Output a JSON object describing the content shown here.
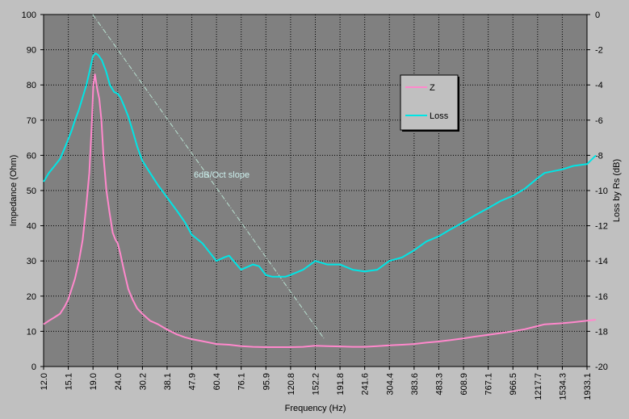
{
  "chart_data": {
    "type": "line",
    "xlabel": "Frequency (Hz)",
    "ylabel_left": "Impedance (Ohm)",
    "ylabel_right": "Loss by Rs (dB)",
    "x_scale": "log",
    "x_ticks": [
      "12.0",
      "15.1",
      "19.0",
      "24.0",
      "30.2",
      "38.1",
      "47.9",
      "60.4",
      "76.1",
      "95.9",
      "120.8",
      "152.2",
      "191.8",
      "241.6",
      "304.4",
      "383.6",
      "483.3",
      "608.9",
      "767.1",
      "966.5",
      "1217.7",
      "1534.3",
      "1933.1"
    ],
    "y_left_ticks": [
      "0",
      "10",
      "20",
      "30",
      "40",
      "50",
      "60",
      "70",
      "80",
      "90",
      "100"
    ],
    "y_left_lim": [
      0,
      100
    ],
    "y_right_ticks": [
      "0",
      "-2",
      "-4",
      "-6",
      "-8",
      "-10",
      "-12",
      "-14",
      "-16",
      "-18",
      "-20"
    ],
    "y_right_lim": [
      -20,
      0
    ],
    "grid": true,
    "legend_position": "top-right",
    "annotation": "6dB/Oct slope",
    "slope_line": {
      "x": [
        19.0,
        165.0
      ],
      "y": [
        100,
        8
      ]
    },
    "series": [
      {
        "name": "Z",
        "axis": "left",
        "color": "#ff88cc",
        "x": [
          12.0,
          12.6,
          13.3,
          14.0,
          14.6,
          15.1,
          15.6,
          16.1,
          16.7,
          17.3,
          17.9,
          18.4,
          18.8,
          19.1,
          19.4,
          19.8,
          20.2,
          20.6,
          21.0,
          21.6,
          22.2,
          22.9,
          23.5,
          24.0,
          24.6,
          25.5,
          26.5,
          27.6,
          28.8,
          30.2,
          32.5,
          35.0,
          38.1,
          41.5,
          45.0,
          47.9,
          53.0,
          60.4,
          68.0,
          76.1,
          85.0,
          95.9,
          108.0,
          120.8,
          136.0,
          152.2,
          170.0,
          191.8,
          216.0,
          241.6,
          272.0,
          304.4,
          343.0,
          383.6,
          430.0,
          483.3,
          540.0,
          608.9,
          680.0,
          767.1,
          860.0,
          966.5,
          1080.0,
          1217.7,
          1300.0,
          1534.3,
          1700.0,
          1933.1,
          2100.0
        ],
        "y": [
          12,
          13,
          14,
          15,
          17,
          19,
          22,
          25,
          30,
          36,
          46,
          55,
          68,
          80,
          83,
          79,
          76,
          70,
          60,
          50,
          44,
          38,
          36,
          35,
          32,
          27,
          22,
          19,
          16.5,
          15,
          13,
          12,
          10.5,
          9.2,
          8.3,
          7.8,
          7.2,
          6.4,
          6.2,
          5.8,
          5.6,
          5.5,
          5.5,
          5.5,
          5.6,
          5.9,
          5.8,
          5.7,
          5.6,
          5.6,
          5.8,
          6.0,
          6.2,
          6.4,
          6.8,
          7.1,
          7.5,
          8.0,
          8.5,
          9.0,
          9.5,
          10.0,
          10.6,
          11.5,
          12.0,
          12.3,
          12.6,
          13.0,
          13.3
        ]
      },
      {
        "name": "Loss",
        "axis": "right",
        "color": "#00e5e5",
        "x": [
          12.0,
          12.6,
          13.3,
          14.0,
          14.6,
          15.1,
          15.6,
          16.1,
          16.7,
          17.3,
          17.9,
          18.4,
          19.0,
          19.5,
          20.0,
          20.7,
          21.5,
          22.3,
          23.2,
          24.0,
          24.6,
          25.5,
          26.5,
          27.6,
          28.8,
          30.2,
          32.5,
          35.0,
          38.1,
          41.5,
          45.0,
          47.9,
          53.0,
          60.4,
          65.0,
          68.0,
          76.1,
          85.0,
          90.0,
          95.9,
          102.0,
          108.0,
          115.0,
          120.8,
          136.0,
          152.2,
          170.0,
          191.8,
          216.0,
          241.6,
          272.0,
          304.4,
          343.0,
          383.6,
          430.0,
          483.3,
          540.0,
          608.9,
          680.0,
          767.1,
          860.0,
          966.5,
          1080.0,
          1217.7,
          1300.0,
          1534.3,
          1700.0,
          1933.1,
          2100.0
        ],
        "y": [
          -9.5,
          -9.0,
          -8.6,
          -8.2,
          -7.6,
          -7.1,
          -6.6,
          -6.0,
          -5.4,
          -4.7,
          -4.0,
          -3.3,
          -2.4,
          -2.2,
          -2.3,
          -2.6,
          -3.2,
          -4.0,
          -4.4,
          -4.5,
          -4.7,
          -5.2,
          -5.8,
          -6.6,
          -7.5,
          -8.3,
          -9.0,
          -9.7,
          -10.4,
          -11.1,
          -11.8,
          -12.5,
          -13.0,
          -14.0,
          -13.8,
          -13.7,
          -14.5,
          -14.2,
          -14.3,
          -14.8,
          -14.9,
          -14.9,
          -14.9,
          -14.8,
          -14.5,
          -14.0,
          -14.2,
          -14.2,
          -14.5,
          -14.6,
          -14.5,
          -14.0,
          -13.8,
          -13.4,
          -12.9,
          -12.6,
          -12.2,
          -11.8,
          -11.4,
          -11.0,
          -10.6,
          -10.3,
          -9.9,
          -9.3,
          -9.0,
          -8.8,
          -8.6,
          -8.5,
          -8.0
        ]
      }
    ]
  }
}
